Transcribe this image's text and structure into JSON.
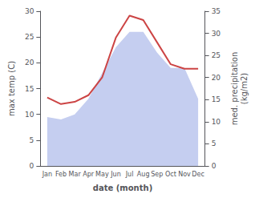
{
  "chart_data": {
    "type": "line",
    "xlabel": "date (month)",
    "ylabel": "max temp (C)",
    "y2label": "med. precipitation\n(kg/m2)",
    "categories": [
      "Jan",
      "Feb",
      "Mar",
      "Apr",
      "May",
      "Jun",
      "Jul",
      "Aug",
      "Sep",
      "Oct",
      "Nov",
      "Dec"
    ],
    "series": [
      {
        "type": "area",
        "color": "#c5cef0",
        "values": [
          9.5,
          9.0,
          10.0,
          13.0,
          18.0,
          23.0,
          26.0,
          26.0,
          22.0,
          19.0,
          19.0,
          13.0
        ]
      },
      {
        "type": "line",
        "color": "#cc4444",
        "axis": "y2",
        "values": [
          15.5,
          14.0,
          14.5,
          16.0,
          20.0,
          29.0,
          34.0,
          33.0,
          28.0,
          23.0,
          22.0,
          22.0
        ]
      }
    ],
    "ylim": [
      0,
      30
    ],
    "yticks": [
      0,
      5,
      10,
      15,
      20,
      25,
      30
    ],
    "y2lim": [
      0,
      35
    ],
    "y2ticks": [
      0,
      5,
      10,
      15,
      20,
      25,
      30,
      35
    ],
    "grid": false
  }
}
